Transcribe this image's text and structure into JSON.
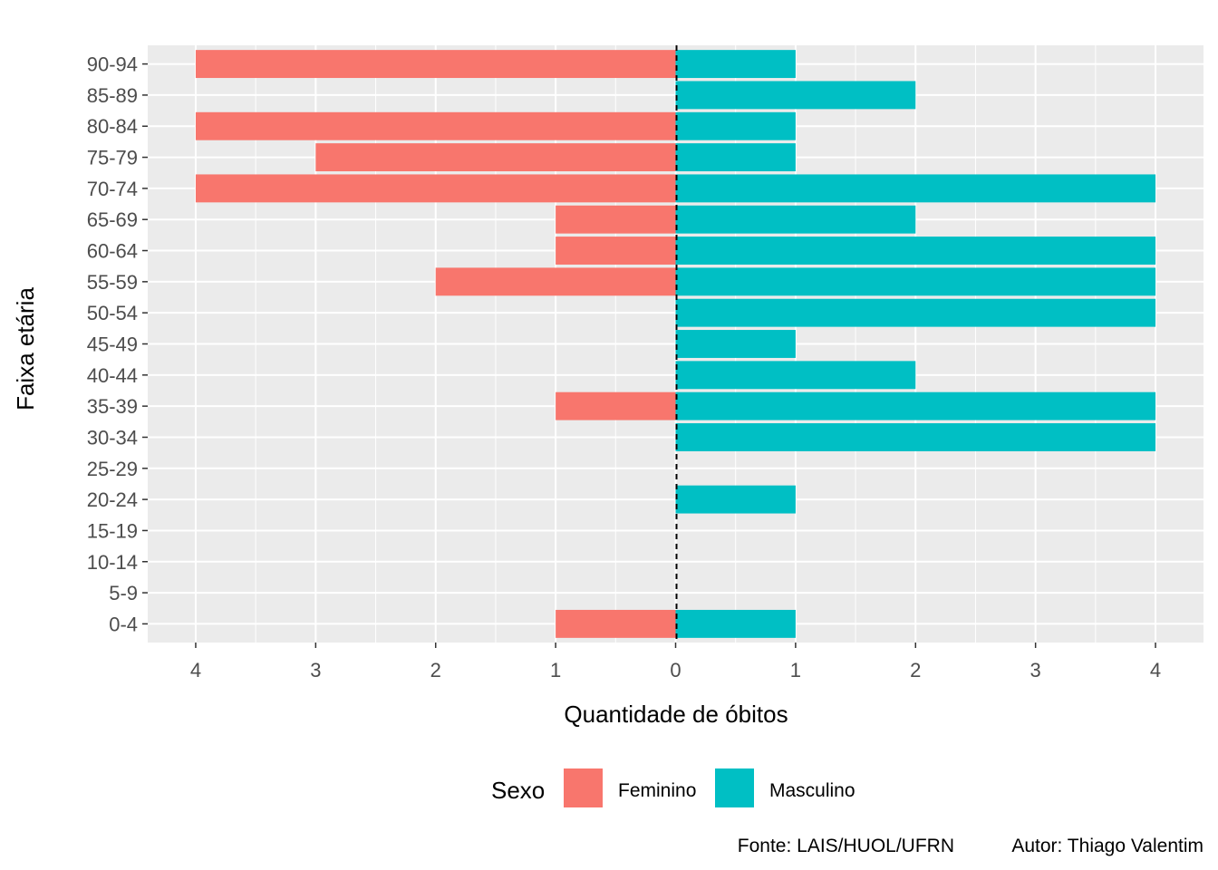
{
  "chart_data": {
    "type": "bar",
    "orientation": "horizontal-pyramid",
    "categories": [
      "0-4",
      "5-9",
      "10-14",
      "15-19",
      "20-24",
      "25-29",
      "30-34",
      "35-39",
      "40-44",
      "45-49",
      "50-54",
      "55-59",
      "60-64",
      "65-69",
      "70-74",
      "75-79",
      "80-84",
      "85-89",
      "90-94"
    ],
    "series": [
      {
        "name": "Feminino",
        "color": "#F8766D",
        "values": [
          1,
          0,
          0,
          0,
          0,
          0,
          0,
          1,
          0,
          0,
          0,
          2,
          1,
          1,
          4,
          3,
          4,
          0,
          4
        ]
      },
      {
        "name": "Masculino",
        "color": "#00BFC4",
        "values": [
          1,
          0,
          0,
          0,
          1,
          0,
          4,
          4,
          2,
          1,
          4,
          4,
          4,
          2,
          4,
          1,
          1,
          2,
          1
        ]
      }
    ],
    "xlim": [
      -4.4,
      4.4
    ],
    "xticks": [
      -4,
      -3,
      -2,
      -1,
      0,
      1,
      2,
      3,
      4
    ],
    "xtick_labels": [
      "4",
      "3",
      "2",
      "1",
      "0",
      "1",
      "2",
      "3",
      "4"
    ],
    "xlabel": "Quantidade de óbitos",
    "ylabel": "Faixa etária",
    "grid": true,
    "reference_line": {
      "x": 0,
      "style": "dashed"
    },
    "legend": {
      "title": "Sexo",
      "position": "bottom",
      "entries": [
        "Feminino",
        "Masculino"
      ]
    },
    "caption": {
      "source": "Fonte: LAIS/HUOL/UFRN",
      "author": "Autor: Thiago Valentim"
    }
  }
}
